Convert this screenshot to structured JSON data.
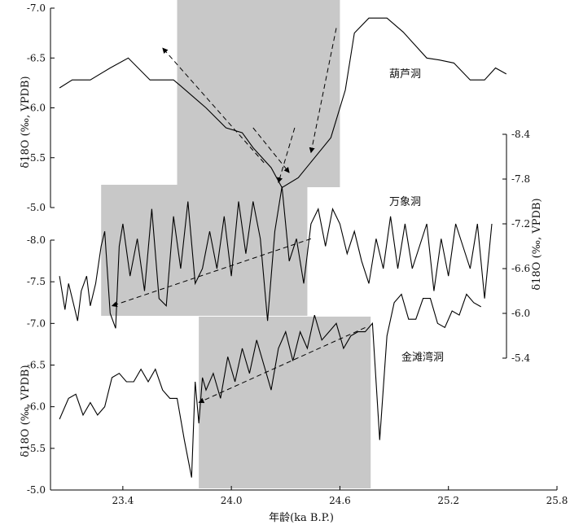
{
  "chart_data": {
    "type": "line",
    "xlabel": "年龄(ka B.P.)",
    "xlim": [
      23.0,
      25.8
    ],
    "x_ticks": [
      "23.4",
      "24.0",
      "24.6",
      "25.2",
      "25.8"
    ],
    "x_tick_values": [
      23.4,
      24.0,
      24.6,
      25.2,
      25.8
    ],
    "shaded_periods": [
      {
        "series": 0,
        "x": [
          23.7,
          24.6
        ]
      },
      {
        "series": 1,
        "x": [
          23.28,
          24.42
        ]
      },
      {
        "series": 2,
        "x": [
          23.82,
          24.77
        ]
      }
    ],
    "series": [
      {
        "name": "葫芦洞",
        "ylabel": "δ18O (‰, VPDB)",
        "y_ticks": [
          "-7.0",
          "-6.5",
          "-6.0",
          "-5.5",
          "-5.0"
        ],
        "y_tick_values": [
          -7.0,
          -6.5,
          -6.0,
          -5.5,
          -5.0
        ],
        "ylim": [
          -7.0,
          -5.0
        ],
        "inverted": true,
        "axis_side": "left",
        "x": [
          23.05,
          23.12,
          23.22,
          23.33,
          23.43,
          23.55,
          23.68,
          23.72,
          23.86,
          23.97,
          24.06,
          24.12,
          24.22,
          24.28,
          24.37,
          24.46,
          24.55,
          24.63,
          24.68,
          24.76,
          24.86,
          24.95,
          25.08,
          25.15,
          25.23,
          25.32,
          25.4,
          25.46,
          25.52
        ],
        "y": [
          -6.2,
          -6.28,
          -6.28,
          -6.4,
          -6.5,
          -6.28,
          -6.28,
          -6.22,
          -6.0,
          -5.8,
          -5.75,
          -5.6,
          -5.4,
          -5.2,
          -5.3,
          -5.5,
          -5.7,
          -6.18,
          -6.75,
          -6.9,
          -6.9,
          -6.76,
          -6.5,
          -6.48,
          -6.45,
          -6.28,
          -6.28,
          -6.4,
          -6.34
        ]
      },
      {
        "name": "万象洞",
        "ylabel": "δ18O (‰, VPDB)",
        "y_ticks": [
          "-8.4",
          "-7.8",
          "-7.2",
          "-6.6",
          "-6.0",
          "-5.4"
        ],
        "y_tick_values": [
          -8.4,
          -7.8,
          -7.2,
          -6.6,
          -6.0,
          -5.4
        ],
        "ylim": [
          -8.4,
          -5.4
        ],
        "inverted": true,
        "axis_side": "right",
        "x": [
          23.05,
          23.08,
          23.1,
          23.12,
          23.15,
          23.17,
          23.2,
          23.22,
          23.25,
          23.28,
          23.3,
          23.33,
          23.36,
          23.38,
          23.4,
          23.44,
          23.48,
          23.52,
          23.56,
          23.6,
          23.64,
          23.68,
          23.72,
          23.76,
          23.8,
          23.84,
          23.88,
          23.92,
          23.96,
          24.0,
          24.04,
          24.08,
          24.12,
          24.16,
          24.2,
          24.24,
          24.28,
          24.32,
          24.36,
          24.4,
          24.44,
          24.48,
          24.52,
          24.56,
          24.6,
          24.64,
          24.68,
          24.72,
          24.76,
          24.8,
          24.84,
          24.88,
          24.92,
          24.96,
          25.0,
          25.04,
          25.08,
          25.12,
          25.16,
          25.2,
          25.24,
          25.28,
          25.32,
          25.36,
          25.4,
          25.44
        ],
        "y": [
          -6.5,
          -6.05,
          -6.4,
          -6.2,
          -5.9,
          -6.3,
          -6.5,
          -6.1,
          -6.4,
          -6.9,
          -7.1,
          -6.0,
          -5.8,
          -6.9,
          -7.2,
          -6.5,
          -7.0,
          -6.3,
          -7.4,
          -6.2,
          -6.1,
          -7.3,
          -6.6,
          -7.5,
          -6.4,
          -6.6,
          -7.1,
          -6.6,
          -7.3,
          -6.5,
          -7.5,
          -6.8,
          -7.5,
          -7.0,
          -5.9,
          -7.1,
          -7.7,
          -6.7,
          -7.0,
          -6.4,
          -7.2,
          -7.4,
          -6.9,
          -7.4,
          -7.2,
          -6.8,
          -7.1,
          -6.7,
          -6.4,
          -7.0,
          -6.6,
          -7.3,
          -6.6,
          -7.2,
          -6.6,
          -6.9,
          -7.2,
          -6.3,
          -7.0,
          -6.5,
          -7.2,
          -6.9,
          -6.6,
          -7.2,
          -6.2,
          -7.2
        ]
      },
      {
        "name": "金滩湾洞",
        "ylabel": "δ18O (‰, VPDB)",
        "y_ticks": [
          "-8.0",
          "-7.5",
          "-7.0",
          "-6.5",
          "-6.0",
          "-5.5",
          "-5.0"
        ],
        "y_tick_values": [
          -8.0,
          -7.5,
          -7.0,
          -6.5,
          -6.0,
          -5.5,
          -5.0
        ],
        "ylim": [
          -8.0,
          -5.0
        ],
        "inverted": true,
        "axis_side": "left",
        "x": [
          23.05,
          23.1,
          23.14,
          23.18,
          23.22,
          23.26,
          23.3,
          23.34,
          23.38,
          23.42,
          23.46,
          23.5,
          23.54,
          23.58,
          23.62,
          23.66,
          23.7,
          23.74,
          23.78,
          23.8,
          23.82,
          23.84,
          23.86,
          23.9,
          23.94,
          23.98,
          24.02,
          24.06,
          24.1,
          24.14,
          24.18,
          24.22,
          24.26,
          24.3,
          24.34,
          24.38,
          24.42,
          24.46,
          24.5,
          24.54,
          24.58,
          24.62,
          24.66,
          24.7,
          24.74,
          24.78,
          24.82,
          24.86,
          24.9,
          24.94,
          24.98,
          25.02,
          25.06,
          25.1,
          25.14,
          25.18,
          25.22,
          25.26,
          25.3,
          25.34,
          25.38
        ],
        "y": [
          -5.85,
          -6.1,
          -6.15,
          -5.9,
          -6.05,
          -5.9,
          -6.0,
          -6.35,
          -6.4,
          -6.3,
          -6.3,
          -6.45,
          -6.3,
          -6.45,
          -6.2,
          -6.1,
          -6.1,
          -5.6,
          -5.15,
          -6.3,
          -5.8,
          -6.35,
          -6.2,
          -6.4,
          -6.1,
          -6.6,
          -6.3,
          -6.7,
          -6.4,
          -6.8,
          -6.5,
          -6.2,
          -6.7,
          -6.9,
          -6.55,
          -6.9,
          -6.7,
          -7.1,
          -6.8,
          -6.9,
          -7.0,
          -6.7,
          -6.85,
          -6.9,
          -6.9,
          -7.0,
          -5.6,
          -6.85,
          -7.25,
          -7.35,
          -7.05,
          -7.05,
          -7.3,
          -7.3,
          -7.0,
          -6.95,
          -7.15,
          -7.1,
          -7.35,
          -7.25,
          -7.2
        ]
      }
    ],
    "trend_arrows": [
      {
        "series": 0,
        "from": [
          24.18,
          -5.45
        ],
        "to": [
          23.62,
          -6.6
        ]
      },
      {
        "series": 0,
        "from": [
          24.12,
          -5.8
        ],
        "to": [
          24.32,
          -5.35
        ]
      },
      {
        "series": 0,
        "from": [
          24.58,
          -6.8
        ],
        "to": [
          24.44,
          -5.55
        ]
      },
      {
        "series": 0,
        "from": [
          24.35,
          -5.8
        ],
        "to": [
          24.26,
          -5.25
        ]
      },
      {
        "series": 1,
        "from": [
          24.44,
          -7.0
        ],
        "to": [
          23.34,
          -6.1
        ]
      },
      {
        "series": 2,
        "from": [
          24.74,
          -6.95
        ],
        "to": [
          23.82,
          -6.05
        ]
      }
    ]
  }
}
